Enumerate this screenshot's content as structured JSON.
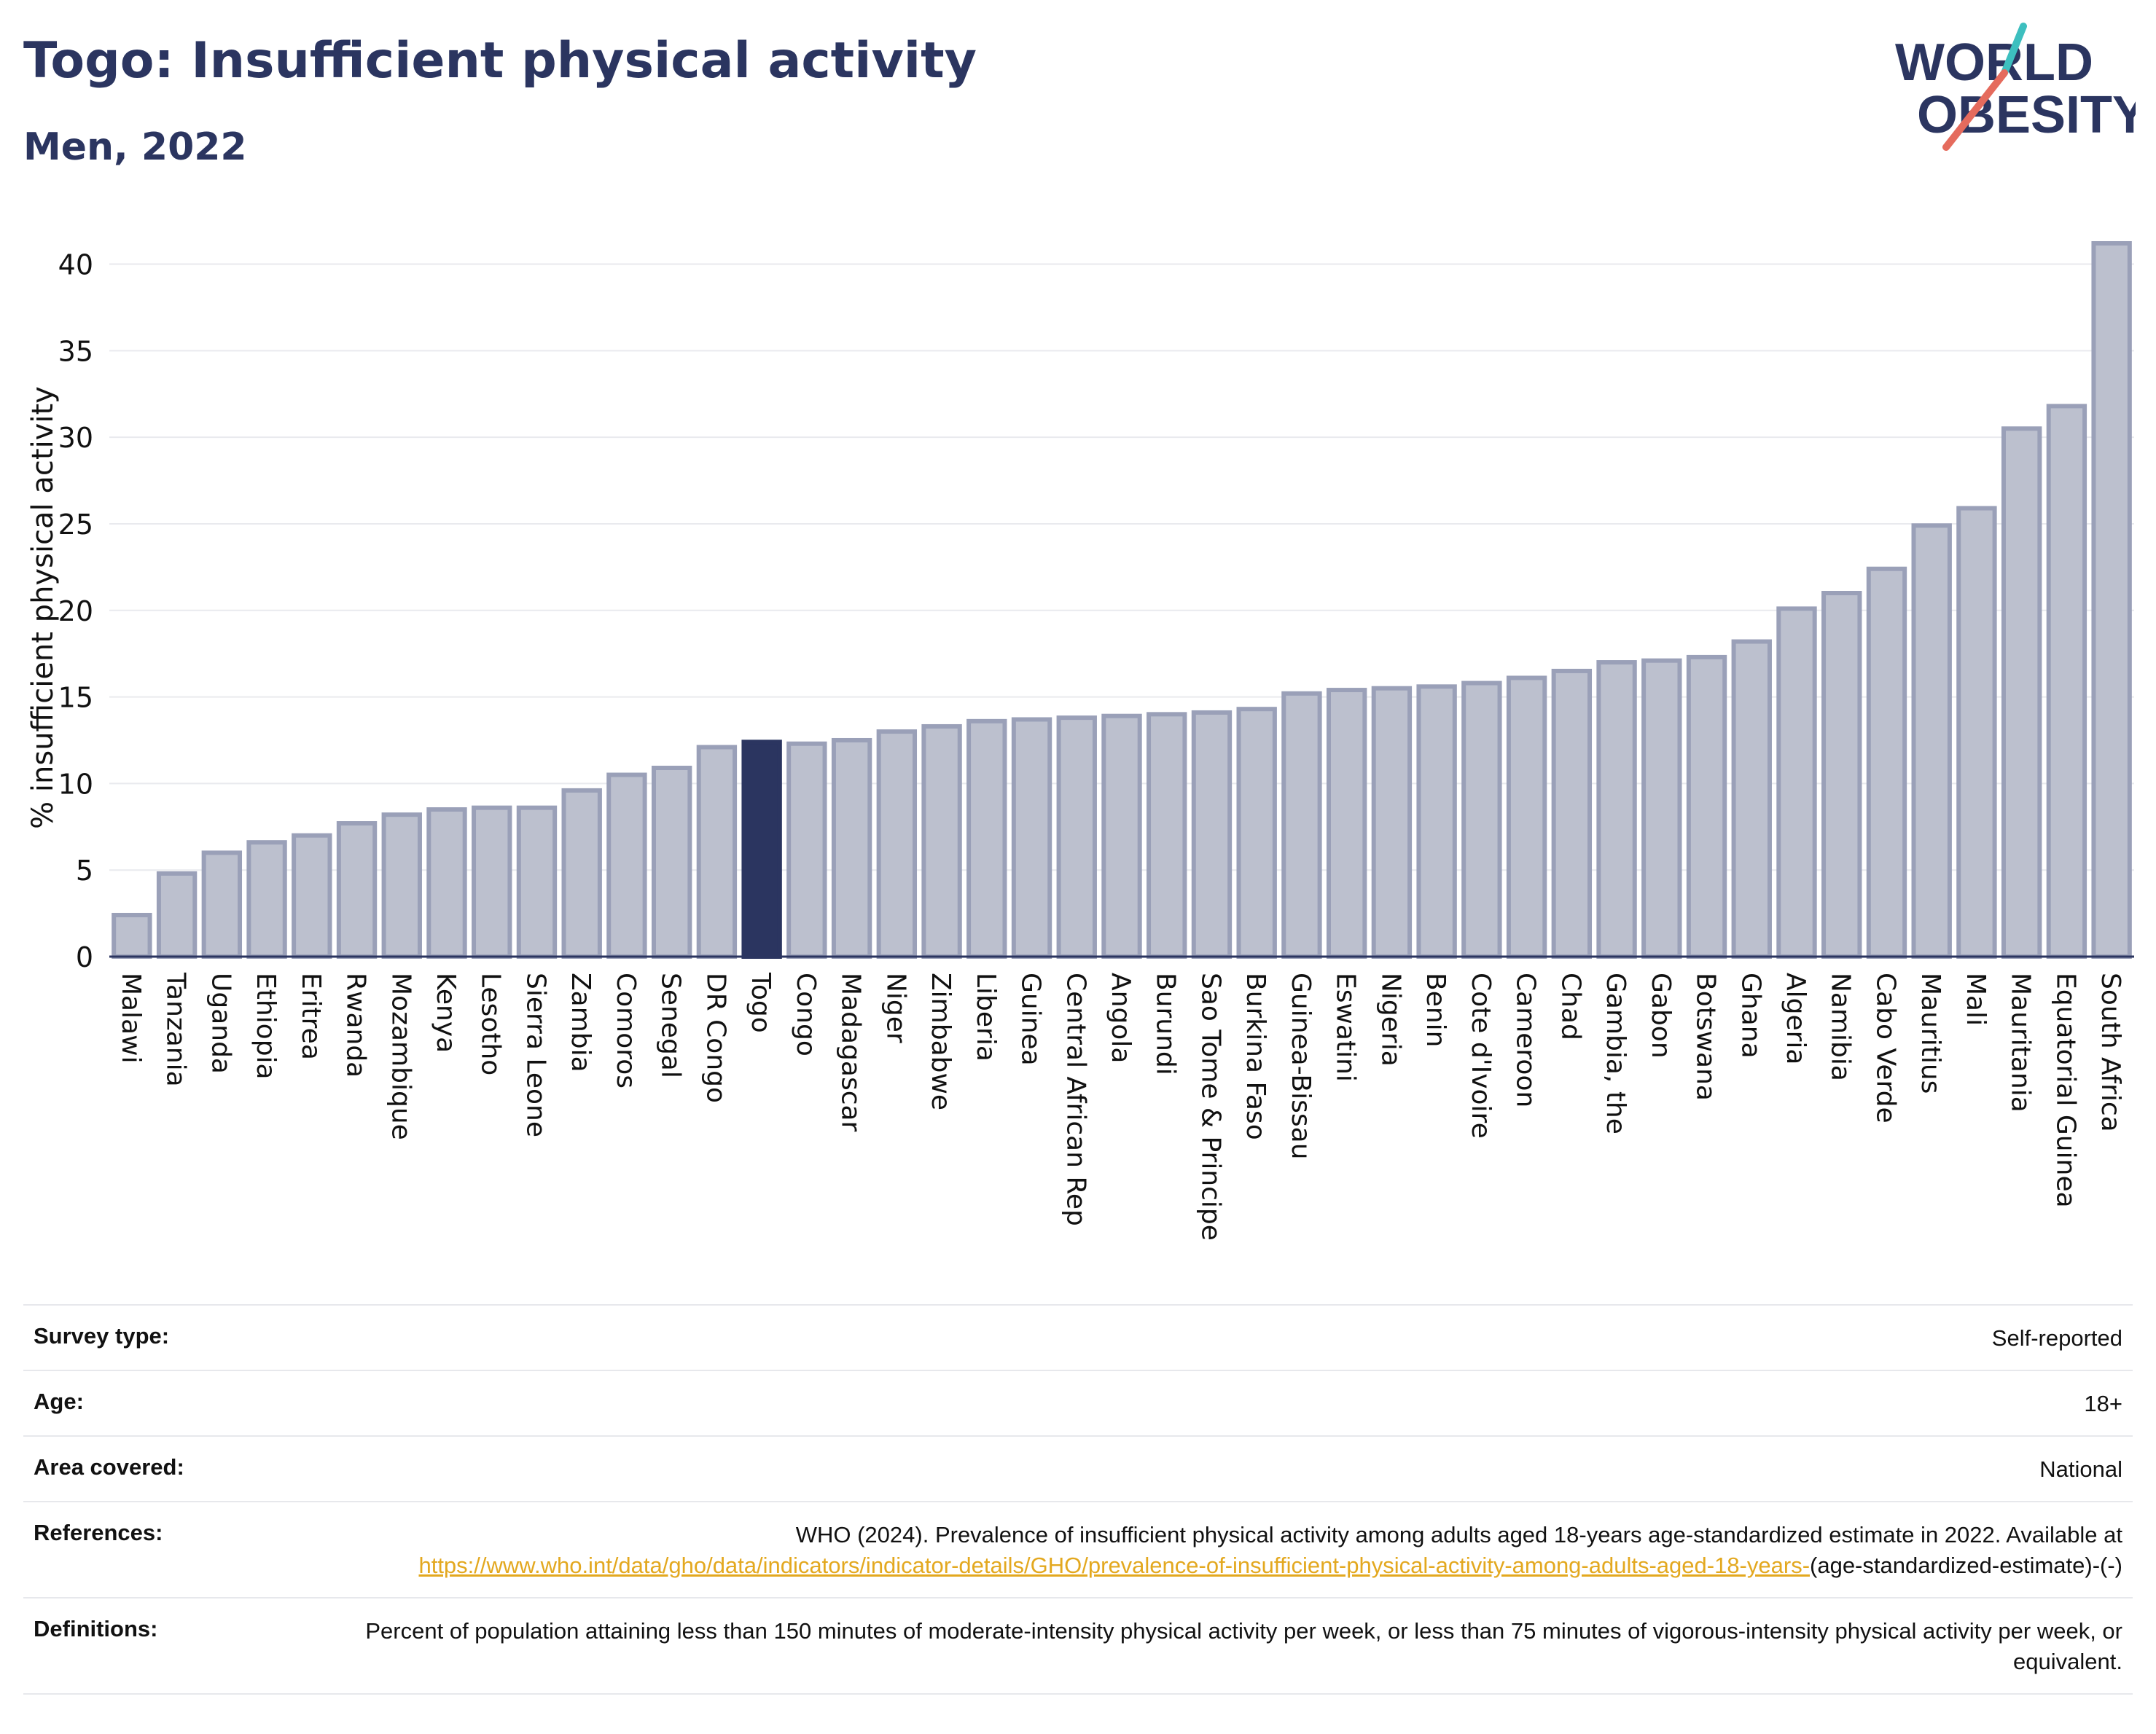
{
  "header": {
    "title": "Togo: Insufficient physical activity",
    "subtitle": "Men, 2022"
  },
  "logo": {
    "line1": "WORLD",
    "line2": "OBESITY",
    "colors": {
      "text": "#2b3560",
      "teal": "#3dbfbf",
      "coral": "#e56b5d"
    }
  },
  "chart_data": {
    "type": "bar",
    "ylabel": "% insufficient physical activity",
    "xlabel": "",
    "ylim": [
      0,
      42
    ],
    "yticks": [
      0,
      5,
      10,
      15,
      20,
      25,
      30,
      35,
      40
    ],
    "grid": true,
    "highlight": "Togo",
    "colors": {
      "bar": "#bcc0ce",
      "bar_edge": "#9aa0b8",
      "highlight": "#2b3560",
      "grid": "#e9eaee",
      "axis": "#2b3560"
    },
    "categories": [
      "Malawi",
      "Tanzania",
      "Uganda",
      "Ethiopia",
      "Eritrea",
      "Rwanda",
      "Mozambique",
      "Kenya",
      "Lesotho",
      "Sierra Leone",
      "Zambia",
      "Comoros",
      "Senegal",
      "DR Congo",
      "Togo",
      "Congo",
      "Madagascar",
      "Niger",
      "Zimbabwe",
      "Liberia",
      "Guinea",
      "Central African Rep",
      "Angola",
      "Burundi",
      "Sao Tome & Principe",
      "Burkina Faso",
      "Guinea-Bissau",
      "Eswatini",
      "Nigeria",
      "Benin",
      "Cote d'Ivoire",
      "Cameroon",
      "Chad",
      "Gambia, the",
      "Gabon",
      "Botswana",
      "Ghana",
      "Algeria",
      "Namibia",
      "Cabo Verde",
      "Mauritius",
      "Mali",
      "Mauritania",
      "Equatorial Guinea",
      "South Africa"
    ],
    "values": [
      2.4,
      4.8,
      6.0,
      6.6,
      7.0,
      7.7,
      8.2,
      8.5,
      8.6,
      8.6,
      9.6,
      10.5,
      10.9,
      12.1,
      12.4,
      12.3,
      12.5,
      13.0,
      13.3,
      13.6,
      13.7,
      13.8,
      13.9,
      14.0,
      14.1,
      14.3,
      15.2,
      15.4,
      15.5,
      15.6,
      15.8,
      16.1,
      16.5,
      17.0,
      17.1,
      17.3,
      18.2,
      20.1,
      21.0,
      22.4,
      24.9,
      25.9,
      30.5,
      31.8,
      41.2
    ]
  },
  "meta": {
    "survey_type": {
      "label": "Survey type:",
      "value": "Self-reported"
    },
    "age": {
      "label": "Age:",
      "value": "18+"
    },
    "area": {
      "label": "Area covered:",
      "value": "National"
    },
    "references": {
      "label": "References:",
      "text": "WHO (2024). Prevalence of insufficient physical activity among adults aged 18-years age-standardized estimate in 2022. Available at",
      "link": "https://www.who.int/data/gho/data/indicators/indicator-details/GHO/prevalence-of-insufficient-physical-activity-among-adults-aged-18-years-",
      "tail": "(age-standardized-estimate)-(-)"
    },
    "definitions": {
      "label": "Definitions:",
      "value": "Percent of population attaining less than 150 minutes of moderate-intensity physical activity per week, or less than 75 minutes of vigorous-intensity physical activity per week, or equivalent."
    }
  }
}
